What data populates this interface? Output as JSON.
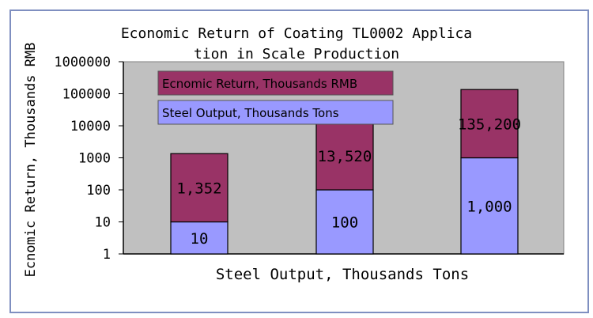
{
  "chart_data": {
    "type": "bar",
    "stacked": true,
    "title_line1": "Economic Return of Coating TL0002 Applica",
    "title_line2": "tion in Scale Production",
    "xlabel": "Steel Output, Thousands Tons",
    "ylabel": "Ecnomic Return, Thousands RMB",
    "y_scale": "log",
    "ylim": [
      1,
      1000000
    ],
    "y_ticks": [
      "1",
      "10",
      "100",
      "1000",
      "10000",
      "100000",
      "1000000"
    ],
    "grid": false,
    "legend_placement": "top-left",
    "series": [
      {
        "name": "Steel Output, Thousands Tons",
        "color": "#9999ff",
        "values": [
          10,
          100,
          1000
        ],
        "labels": [
          "10",
          "100",
          "1,000"
        ]
      },
      {
        "name": "Ecnomic Return, Thousands RMB",
        "color": "#993366",
        "values": [
          1352,
          13520,
          135200
        ],
        "labels": [
          "1,352",
          "13,520",
          "135,200"
        ]
      }
    ]
  }
}
